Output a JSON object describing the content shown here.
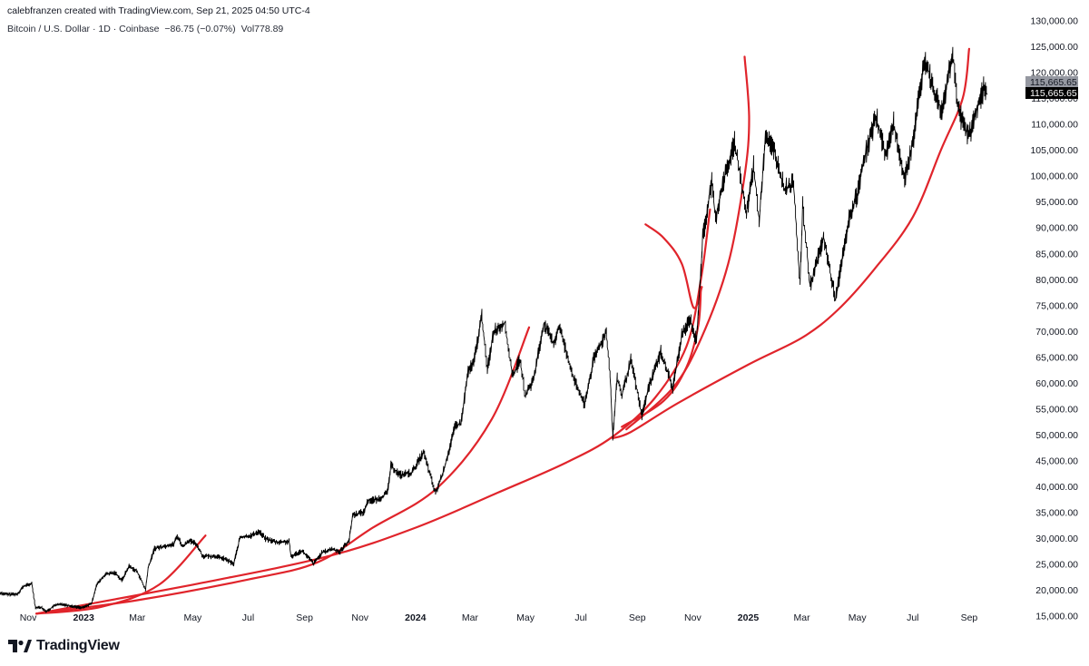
{
  "header": {
    "credit": "calebfranzen created with TradingView.com, Sep 21, 2025 04:50 UTC-4",
    "symbol": "Bitcoin / U.S. Dollar · 1D · Coinbase",
    "change": "−86.75 (−0.07%)",
    "volume": "Vol778.89"
  },
  "brand": {
    "name": "TradingView",
    "icon": "tradingview-logo-icon"
  },
  "price_tags": {
    "last_grey": "115,665.65",
    "last_black": "115,665.65"
  },
  "colors": {
    "price_line": "#000000",
    "arcs": "#e0242b",
    "tag_grey": "#9598a1",
    "tag_black": "#000000"
  },
  "chart_data": {
    "type": "line",
    "title": "Bitcoin / U.S. Dollar · 1D · Coinbase",
    "xlabel": "",
    "ylabel": "",
    "ylim": [
      13000,
      131500
    ],
    "xlim": [
      "2022-10-01",
      "2025-10-18"
    ],
    "y_ticks": [
      "15,000.00",
      "20,000.00",
      "25,000.00",
      "30,000.00",
      "35,000.00",
      "40,000.00",
      "45,000.00",
      "50,000.00",
      "55,000.00",
      "60,000.00",
      "65,000.00",
      "70,000.00",
      "75,000.00",
      "80,000.00",
      "85,000.00",
      "90,000.00",
      "95,000.00",
      "100,000.00",
      "105,000.00",
      "110,000.00",
      "115,000.00",
      "120,000.00",
      "125,000.00",
      "130,000.00"
    ],
    "x_ticks": [
      {
        "label": "Nov",
        "date": "2022-11-01"
      },
      {
        "label": "2023",
        "date": "2023-01-01",
        "bold": true
      },
      {
        "label": "Mar",
        "date": "2023-03-01"
      },
      {
        "label": "May",
        "date": "2023-05-01"
      },
      {
        "label": "Jul",
        "date": "2023-07-01"
      },
      {
        "label": "Sep",
        "date": "2023-09-01"
      },
      {
        "label": "Nov",
        "date": "2023-11-01"
      },
      {
        "label": "2024",
        "date": "2024-01-01",
        "bold": true
      },
      {
        "label": "Mar",
        "date": "2024-03-01"
      },
      {
        "label": "May",
        "date": "2024-05-01"
      },
      {
        "label": "Jul",
        "date": "2024-07-01"
      },
      {
        "label": "Sep",
        "date": "2024-09-01"
      },
      {
        "label": "Nov",
        "date": "2024-11-01"
      },
      {
        "label": "2025",
        "date": "2025-01-01",
        "bold": true
      },
      {
        "label": "Mar",
        "date": "2025-03-01"
      },
      {
        "label": "May",
        "date": "2025-05-01"
      },
      {
        "label": "Jul",
        "date": "2025-07-01"
      },
      {
        "label": "Sep",
        "date": "2025-09-01"
      }
    ],
    "series": [
      {
        "values": [
          [
            "2022-10-01",
            19400
          ],
          [
            "2022-10-10",
            19100
          ],
          [
            "2022-10-20",
            19200
          ],
          [
            "2022-10-27",
            20700
          ],
          [
            "2022-11-05",
            21200
          ],
          [
            "2022-11-09",
            16500
          ],
          [
            "2022-11-15",
            16700
          ],
          [
            "2022-11-21",
            15800
          ],
          [
            "2022-12-01",
            17100
          ],
          [
            "2022-12-10",
            17200
          ],
          [
            "2022-12-20",
            16800
          ],
          [
            "2022-12-31",
            16550
          ],
          [
            "2023-01-10",
            17400
          ],
          [
            "2023-01-15",
            20900
          ],
          [
            "2023-01-25",
            23000
          ],
          [
            "2023-02-05",
            23300
          ],
          [
            "2023-02-12",
            21800
          ],
          [
            "2023-02-20",
            24600
          ],
          [
            "2023-03-01",
            23500
          ],
          [
            "2023-03-10",
            20000
          ],
          [
            "2023-03-13",
            24200
          ],
          [
            "2023-03-20",
            28000
          ],
          [
            "2023-04-01",
            28500
          ],
          [
            "2023-04-10",
            28800
          ],
          [
            "2023-04-14",
            30400
          ],
          [
            "2023-04-20",
            28300
          ],
          [
            "2023-04-26",
            29500
          ],
          [
            "2023-05-05",
            28900
          ],
          [
            "2023-05-12",
            26500
          ],
          [
            "2023-05-25",
            26500
          ],
          [
            "2023-06-05",
            26000
          ],
          [
            "2023-06-15",
            25000
          ],
          [
            "2023-06-22",
            30100
          ],
          [
            "2023-07-05",
            30500
          ],
          [
            "2023-07-13",
            31300
          ],
          [
            "2023-07-20",
            29900
          ],
          [
            "2023-08-01",
            29200
          ],
          [
            "2023-08-15",
            29300
          ],
          [
            "2023-08-17",
            26400
          ],
          [
            "2023-08-29",
            27600
          ],
          [
            "2023-09-11",
            25100
          ],
          [
            "2023-09-20",
            27100
          ],
          [
            "2023-10-01",
            27900
          ],
          [
            "2023-10-10",
            27400
          ],
          [
            "2023-10-20",
            29600
          ],
          [
            "2023-10-24",
            34500
          ],
          [
            "2023-11-05",
            35000
          ],
          [
            "2023-11-10",
            37300
          ],
          [
            "2023-11-20",
            37400
          ],
          [
            "2023-12-01",
            38700
          ],
          [
            "2023-12-05",
            44000
          ],
          [
            "2023-12-15",
            42200
          ],
          [
            "2023-12-28",
            42600
          ],
          [
            "2024-01-10",
            46600
          ],
          [
            "2024-01-23",
            38600
          ],
          [
            "2024-02-01",
            43000
          ],
          [
            "2024-02-14",
            51800
          ],
          [
            "2024-02-20",
            52000
          ],
          [
            "2024-02-28",
            62300
          ],
          [
            "2024-03-05",
            63700
          ],
          [
            "2024-03-14",
            73000
          ],
          [
            "2024-03-20",
            62500
          ],
          [
            "2024-03-27",
            70000
          ],
          [
            "2024-04-08",
            71600
          ],
          [
            "2024-04-17",
            61200
          ],
          [
            "2024-04-25",
            64500
          ],
          [
            "2024-05-01",
            57300
          ],
          [
            "2024-05-10",
            60800
          ],
          [
            "2024-05-21",
            71400
          ],
          [
            "2024-06-01",
            67500
          ],
          [
            "2024-06-07",
            71000
          ],
          [
            "2024-06-15",
            66000
          ],
          [
            "2024-06-24",
            60300
          ],
          [
            "2024-07-05",
            55800
          ],
          [
            "2024-07-15",
            64500
          ],
          [
            "2024-07-29",
            69900
          ],
          [
            "2024-08-02",
            62000
          ],
          [
            "2024-08-05",
            49500
          ],
          [
            "2024-08-10",
            60900
          ],
          [
            "2024-08-15",
            57500
          ],
          [
            "2024-08-25",
            64300
          ],
          [
            "2024-09-06",
            53800
          ],
          [
            "2024-09-15",
            60000
          ],
          [
            "2024-09-27",
            66000
          ],
          [
            "2024-10-10",
            58900
          ],
          [
            "2024-10-20",
            69000
          ],
          [
            "2024-10-29",
            72500
          ],
          [
            "2024-11-05",
            68000
          ],
          [
            "2024-11-12",
            88000
          ],
          [
            "2024-11-22",
            98900
          ],
          [
            "2024-11-26",
            91800
          ],
          [
            "2024-12-05",
            99000
          ],
          [
            "2024-12-17",
            106400
          ],
          [
            "2024-12-30",
            92600
          ],
          [
            "2025-01-07",
            102000
          ],
          [
            "2025-01-13",
            91000
          ],
          [
            "2025-01-20",
            108000
          ],
          [
            "2025-01-30",
            104700
          ],
          [
            "2025-02-10",
            97400
          ],
          [
            "2025-02-20",
            98500
          ],
          [
            "2025-02-27",
            79000
          ],
          [
            "2025-03-02",
            94000
          ],
          [
            "2025-03-10",
            78600
          ],
          [
            "2025-03-25",
            88000
          ],
          [
            "2025-04-07",
            76200
          ],
          [
            "2025-04-22",
            91600
          ],
          [
            "2025-05-01",
            96500
          ],
          [
            "2025-05-08",
            103000
          ],
          [
            "2025-05-22",
            111500
          ],
          [
            "2025-06-01",
            104000
          ],
          [
            "2025-06-10",
            110000
          ],
          [
            "2025-06-22",
            99500
          ],
          [
            "2025-07-01",
            106500
          ],
          [
            "2025-07-14",
            122800
          ],
          [
            "2025-07-25",
            116000
          ],
          [
            "2025-08-02",
            112500
          ],
          [
            "2025-08-14",
            124200
          ],
          [
            "2025-08-20",
            112500
          ],
          [
            "2025-09-01",
            107500
          ],
          [
            "2025-09-10",
            113500
          ],
          [
            "2025-09-18",
            117200
          ],
          [
            "2025-09-21",
            115665.65
          ]
        ]
      }
    ],
    "annotations": [
      {
        "type": "arc",
        "points": [
          [
            "2022-11-10",
            15400
          ],
          [
            "2023-01-20",
            16700
          ],
          [
            "2023-03-25",
            21000
          ],
          [
            "2023-05-15",
            30500
          ]
        ]
      },
      {
        "type": "arc",
        "points": [
          [
            "2022-11-10",
            15400
          ],
          [
            "2023-03-01",
            18000
          ],
          [
            "2023-07-01",
            22000
          ],
          [
            "2023-09-15",
            25300
          ],
          [
            "2023-11-15",
            32000
          ],
          [
            "2024-01-25",
            39700
          ],
          [
            "2024-03-25",
            53000
          ],
          [
            "2024-05-05",
            70700
          ]
        ]
      },
      {
        "type": "arc",
        "points": [
          [
            "2022-11-10",
            15400
          ],
          [
            "2023-05-01",
            21000
          ],
          [
            "2023-09-25",
            26400
          ],
          [
            "2024-01-01",
            32000
          ],
          [
            "2024-04-01",
            38800
          ],
          [
            "2024-06-15",
            44600
          ],
          [
            "2024-08-05",
            49600
          ],
          [
            "2024-09-20",
            57000
          ],
          [
            "2024-10-25",
            67000
          ],
          [
            "2024-11-10",
            80000
          ],
          [
            "2024-11-20",
            93500
          ]
        ]
      },
      {
        "type": "arc",
        "points": [
          [
            "2024-08-15",
            51500
          ],
          [
            "2024-09-30",
            56500
          ],
          [
            "2024-10-25",
            63000
          ],
          [
            "2024-11-07",
            71000
          ],
          [
            "2024-11-10",
            78500
          ]
        ]
      },
      {
        "type": "arc",
        "points": [
          [
            "2024-11-11",
            78500
          ],
          [
            "2024-11-02",
            74500
          ],
          [
            "2024-10-20",
            83000
          ],
          [
            "2024-09-30",
            88000
          ],
          [
            "2024-09-10",
            90600
          ]
        ]
      },
      {
        "type": "arc",
        "points": [
          [
            "2024-08-20",
            51000
          ],
          [
            "2024-10-10",
            59000
          ],
          [
            "2024-11-10",
            68500
          ],
          [
            "2024-12-10",
            83000
          ],
          [
            "2024-12-28",
            100000
          ],
          [
            "2025-01-02",
            111000
          ],
          [
            "2024-12-28",
            123000
          ]
        ]
      },
      {
        "type": "arc",
        "points": [
          [
            "2024-08-05",
            49300
          ],
          [
            "2024-08-25",
            50500
          ],
          [
            "2024-10-15",
            56000
          ],
          [
            "2025-01-01",
            63500
          ],
          [
            "2025-03-01",
            68700
          ],
          [
            "2025-04-09",
            74000
          ],
          [
            "2025-05-20",
            82000
          ],
          [
            "2025-07-01",
            92000
          ],
          [
            "2025-08-01",
            105000
          ],
          [
            "2025-08-25",
            115000
          ],
          [
            "2025-09-01",
            124500
          ]
        ]
      }
    ]
  }
}
